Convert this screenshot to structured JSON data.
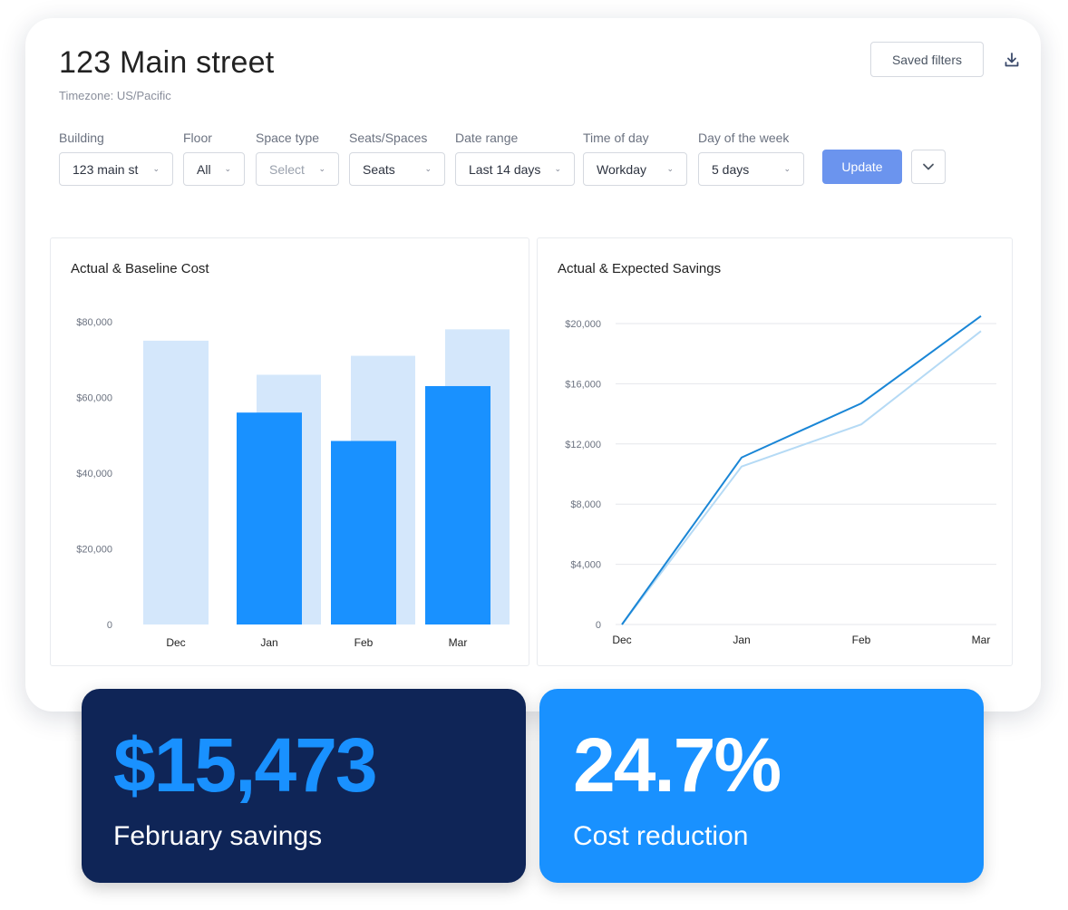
{
  "header": {
    "title": "123 Main street",
    "timezone": "Timezone: US/Pacific",
    "saved_filters_label": "Saved filters",
    "download_icon": "download-icon"
  },
  "filters": [
    {
      "label": "Building",
      "value": "123 main st"
    },
    {
      "label": "Floor",
      "value": "All"
    },
    {
      "label": "Space type",
      "value": "Select",
      "placeholder": true
    },
    {
      "label": "Seats/Spaces",
      "value": "Seats"
    },
    {
      "label": "Date range",
      "value": "Last 14 days"
    },
    {
      "label": "Time of day",
      "value": "Workday"
    },
    {
      "label": "Day of the week",
      "value": "5 days"
    }
  ],
  "update_label": "Update",
  "colors": {
    "baseline": "#d4e7fb",
    "actual": "#1991ff",
    "line_actual": "#1a86d6",
    "line_expected": "#b5daf5",
    "dark_card": "#0f2557",
    "update_button": "#6b94ee"
  },
  "chart_data": [
    {
      "type": "bar",
      "title": "Actual & Baseline Cost",
      "categories": [
        "Dec",
        "Jan",
        "Feb",
        "Mar"
      ],
      "series": [
        {
          "values": [
            75000,
            66000,
            71000,
            78000
          ]
        },
        {
          "values": [
            null,
            56000,
            48500,
            63000
          ]
        }
      ],
      "ylim": [
        0,
        80000
      ],
      "yticks": [
        0,
        20000,
        40000,
        60000,
        80000
      ],
      "ytick_labels": [
        "0",
        "$20,000",
        "$40,000",
        "$60,000",
        "$80,000"
      ],
      "grid": false
    },
    {
      "type": "line",
      "title": "Actual & Expected Savings",
      "categories": [
        "Dec",
        "Jan",
        "Feb",
        "Mar"
      ],
      "series": [
        {
          "values": [
            0,
            11100,
            14700,
            20500
          ]
        },
        {
          "values": [
            0,
            10500,
            13300,
            19500
          ]
        }
      ],
      "ylim": [
        0,
        20000
      ],
      "yticks": [
        0,
        4000,
        8000,
        12000,
        16000,
        20000
      ],
      "ytick_labels": [
        "0",
        "$4,000",
        "$8,000",
        "$12,000",
        "$16,000",
        "$20,000"
      ],
      "grid": true
    }
  ],
  "stats": [
    {
      "value": "$15,473",
      "label": "February savings"
    },
    {
      "value": "24.7%",
      "label": "Cost reduction"
    }
  ]
}
